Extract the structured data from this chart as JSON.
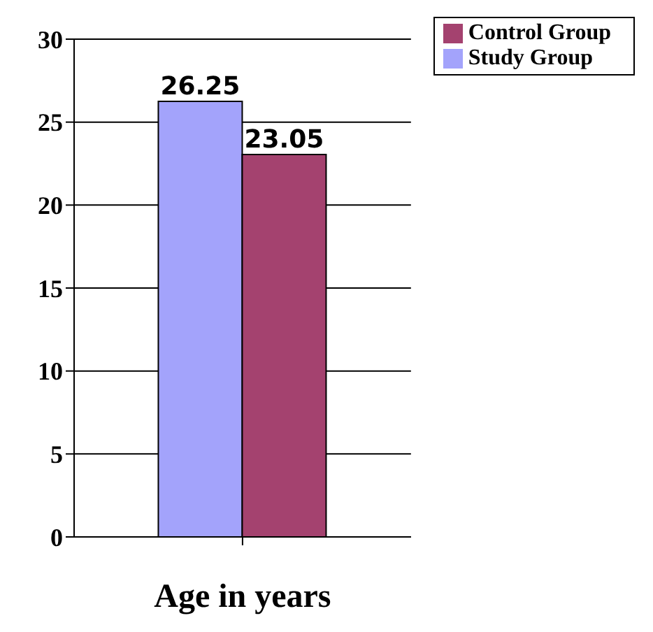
{
  "chart_data": {
    "type": "bar",
    "xlabel": "Age in years",
    "categories": [
      null
    ],
    "series": [
      {
        "name": "Study Group",
        "color": "#a3a3fb",
        "values": [
          26.25
        ]
      },
      {
        "name": "Control Group",
        "color": "#a4426f",
        "values": [
          23.05
        ]
      }
    ],
    "ylim": [
      0,
      30
    ],
    "yticks": [
      0,
      5,
      10,
      15,
      20,
      25,
      30
    ],
    "grid": "y",
    "legend": "top right",
    "data_labels": true
  }
}
